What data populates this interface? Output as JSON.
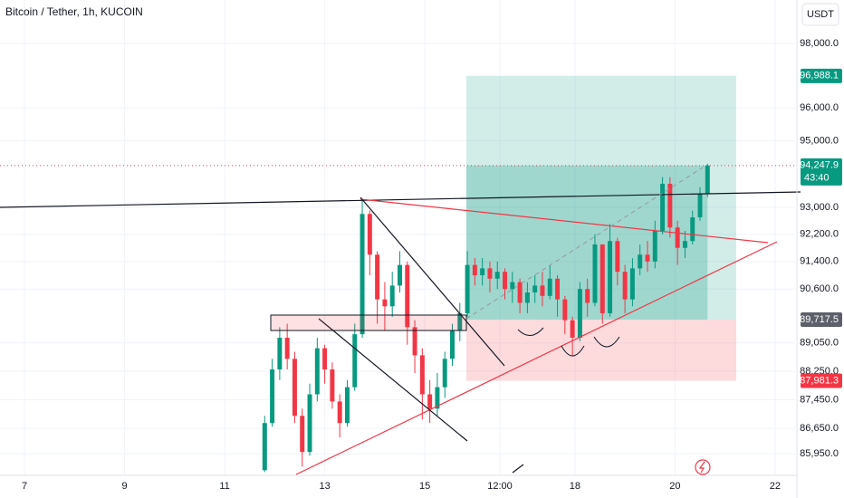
{
  "chart_data": {
    "type": "candlestick",
    "title": "Bitcoin / Tether, 1h, KUCOIN",
    "currency": "USDT",
    "countdown": "43:40",
    "log": true,
    "up_color": "#089981",
    "down_color": "#f23645",
    "xlim": [
      6.51,
      22.4
    ],
    "ylim": [
      85360,
      99370
    ],
    "xticks": [
      7,
      9,
      11,
      13,
      15,
      {
        "value": 16.5,
        "label": "12:00"
      },
      18,
      20,
      22
    ],
    "yticks": [
      {
        "value": 98000,
        "label": "98,000.0"
      },
      {
        "value": 96000,
        "label": "96,000.0"
      },
      {
        "value": 95000,
        "label": "95,000.0"
      },
      {
        "value": 93000,
        "label": "93,000.0"
      },
      {
        "value": 92200,
        "label": "92,200.0"
      },
      {
        "value": 91400,
        "label": "91,400.0"
      },
      {
        "value": 90600,
        "label": "90,600.0"
      },
      {
        "value": 89050,
        "label": "89,050.0"
      },
      {
        "value": 88250,
        "label": "88,250.0"
      },
      {
        "value": 87450,
        "label": "87,450.0"
      },
      {
        "value": 86650,
        "label": "86,650.0"
      },
      {
        "value": 85950,
        "label": "85,950.0"
      }
    ],
    "price_labels": [
      {
        "value": 96988.1,
        "label": "96,988.1",
        "color": "#089981"
      },
      {
        "value": 94247.9,
        "label": "94,247.9",
        "color": "#089981"
      },
      {
        "value": 89717.5,
        "label": "89,717.5",
        "color": "#5d606b"
      },
      {
        "value": 87981.3,
        "label": "87,981.3",
        "color": "#f23645"
      }
    ],
    "x": [
      11.8,
      11.95,
      12.1,
      12.25,
      12.4,
      12.55,
      12.7,
      12.85,
      13.0,
      13.15,
      13.3,
      13.45,
      13.6,
      13.75,
      13.9,
      14.05,
      14.2,
      14.35,
      14.5,
      14.65,
      14.8,
      14.95,
      15.1,
      15.25,
      15.4,
      15.55,
      15.7,
      15.85,
      16.0,
      16.15,
      16.3,
      16.45,
      16.6,
      16.75,
      16.9,
      17.05,
      17.2,
      17.35,
      17.5,
      17.65,
      17.8,
      17.95,
      18.1,
      18.25,
      18.4,
      18.55,
      18.7,
      18.85,
      19.0,
      19.15,
      19.3,
      19.45,
      19.6,
      19.75,
      19.9,
      20.05,
      20.2,
      20.35,
      20.5,
      20.65
    ],
    "open": [
      85500,
      86800,
      88300,
      89200,
      88600,
      87000,
      86000,
      87600,
      88900,
      88300,
      87400,
      86800,
      87800,
      89300,
      92800,
      91600,
      90300,
      90100,
      90700,
      91300,
      89500,
      88700,
      87600,
      87200,
      87800,
      88600,
      89400,
      89900,
      91300,
      91000,
      91200,
      90900,
      91100,
      90600,
      90800,
      90200,
      90500,
      90700,
      90400,
      90900,
      90300,
      89700,
      89200,
      90600,
      90200,
      91900,
      89900,
      92000,
      91100,
      90300,
      91200,
      91600,
      91400,
      92300,
      93700,
      92400,
      91800,
      92000,
      92700,
      93400
    ],
    "high": [
      87000,
      88600,
      89500,
      89600,
      88800,
      87200,
      87900,
      89200,
      89000,
      88500,
      87600,
      88000,
      89600,
      93200,
      92900,
      91700,
      90800,
      91100,
      91700,
      91400,
      89700,
      88900,
      88000,
      88200,
      88800,
      89600,
      90200,
      91700,
      91500,
      91500,
      91400,
      91400,
      91200,
      91100,
      90900,
      90800,
      91000,
      91100,
      91300,
      91000,
      90400,
      89800,
      90800,
      90900,
      92200,
      91900,
      92500,
      92100,
      91300,
      91500,
      91900,
      92000,
      92600,
      93900,
      93900,
      92600,
      92300,
      92900,
      93600,
      94300
    ],
    "low": [
      85450,
      86700,
      88000,
      88300,
      86800,
      85600,
      85900,
      87400,
      87900,
      87200,
      86400,
      86700,
      87700,
      89200,
      91000,
      89600,
      89400,
      89800,
      90500,
      89000,
      88200,
      86900,
      86800,
      87000,
      87500,
      88400,
      89100,
      89800,
      90700,
      90700,
      90500,
      90600,
      90300,
      90200,
      89900,
      89900,
      90200,
      90100,
      90300,
      89800,
      89300,
      88700,
      89100,
      89800,
      90100,
      89600,
      89800,
      90700,
      89900,
      90100,
      91000,
      91100,
      91200,
      92200,
      92100,
      91300,
      91500,
      91900,
      92600,
      93300
    ],
    "close": [
      86800,
      88300,
      89200,
      88600,
      87000,
      86000,
      87600,
      88900,
      88300,
      87400,
      86800,
      87800,
      89300,
      92800,
      91600,
      90300,
      90100,
      90700,
      91300,
      89500,
      88700,
      87600,
      87200,
      87800,
      88600,
      89400,
      89900,
      91300,
      91000,
      91200,
      90900,
      91100,
      90600,
      90800,
      90200,
      90500,
      90700,
      90400,
      90900,
      90300,
      89700,
      89200,
      90600,
      90200,
      91900,
      89900,
      92000,
      91100,
      90300,
      91200,
      91600,
      91400,
      92300,
      93700,
      92400,
      91800,
      92000,
      92700,
      93400,
      94247.9
    ]
  }
}
